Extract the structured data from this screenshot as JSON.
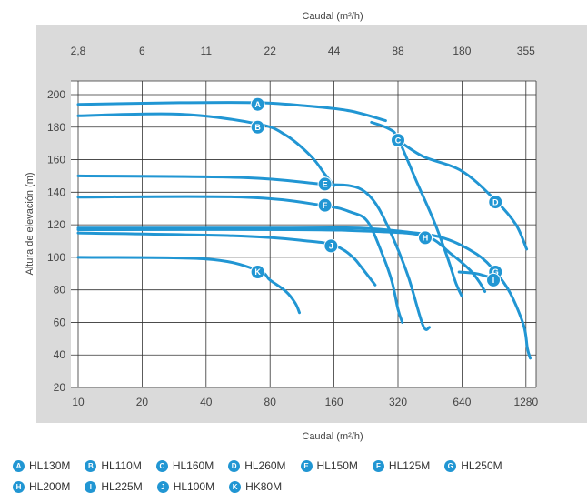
{
  "chart_data": {
    "type": "line",
    "title": "",
    "xlabel": "Caudal (m²/h)",
    "x2label": "Caudal (m²/h)",
    "ylabel": "Altura de elevación (m)",
    "x_scale": "log",
    "xlim": [
      10,
      2600
    ],
    "ylim": [
      20,
      210
    ],
    "x_ticks": [
      10,
      20,
      40,
      80,
      160,
      320,
      640,
      1280
    ],
    "x_tick_labels": [
      "10",
      "20",
      "40",
      "80",
      "160",
      "320",
      "640",
      "1280"
    ],
    "x2_ticks": [
      2.8,
      6,
      11,
      22,
      44,
      88,
      180,
      355
    ],
    "x2_tick_labels": [
      "2,8",
      "6",
      "11",
      "22",
      "44",
      "88",
      "180",
      "355"
    ],
    "y_ticks": [
      20,
      40,
      60,
      80,
      100,
      120,
      140,
      160,
      180,
      200
    ],
    "grid": true,
    "series": [
      {
        "key": "A",
        "name": "HL130M",
        "points": [
          [
            10,
            194
          ],
          [
            30,
            195
          ],
          [
            70,
            195
          ],
          [
            120,
            193
          ],
          [
            190,
            190
          ],
          [
            280,
            184
          ]
        ],
        "label_at": [
          70,
          194
        ]
      },
      {
        "key": "B",
        "name": "HL110M",
        "points": [
          [
            10,
            187
          ],
          [
            30,
            188
          ],
          [
            70,
            182
          ],
          [
            95,
            175
          ],
          [
            125,
            162
          ],
          [
            145,
            151
          ],
          [
            160,
            144
          ]
        ],
        "label_at": [
          70,
          180
        ]
      },
      {
        "key": "C",
        "name": "HL160M",
        "points": [
          [
            240,
            183
          ],
          [
            290,
            179
          ],
          [
            320,
            173
          ],
          [
            390,
            147
          ],
          [
            470,
            123
          ],
          [
            540,
            102
          ],
          [
            600,
            84
          ],
          [
            640,
            76
          ]
        ],
        "label_at": [
          320,
          172
        ]
      },
      {
        "key": "D",
        "name": "HL260M",
        "points": [
          [
            320,
            172
          ],
          [
            420,
            162
          ],
          [
            640,
            153
          ],
          [
            920,
            135
          ],
          [
            1150,
            120
          ],
          [
            1290,
            105
          ]
        ],
        "label_at": [
          920,
          134
        ]
      },
      {
        "key": "E",
        "name": "HL150M",
        "points": [
          [
            10,
            150
          ],
          [
            60,
            149
          ],
          [
            140,
            145
          ],
          [
            190,
            144
          ],
          [
            225,
            140
          ],
          [
            260,
            130
          ],
          [
            310,
            109
          ],
          [
            360,
            87
          ],
          [
            420,
            58
          ],
          [
            450,
            57
          ]
        ],
        "label_at": [
          145,
          145
        ]
      },
      {
        "key": "F",
        "name": "HL125M",
        "points": [
          [
            10,
            137
          ],
          [
            60,
            137
          ],
          [
            140,
            132
          ],
          [
            190,
            128
          ],
          [
            230,
            122
          ],
          [
            270,
            102
          ],
          [
            300,
            85
          ],
          [
            320,
            68
          ],
          [
            335,
            60
          ]
        ],
        "label_at": [
          145,
          132
        ]
      },
      {
        "key": "G",
        "name": "HL250M",
        "points": [
          [
            10,
            118
          ],
          [
            100,
            118
          ],
          [
            210,
            118
          ],
          [
            330,
            116
          ],
          [
            520,
            112
          ],
          [
            750,
            102
          ],
          [
            920,
            91
          ],
          [
            1080,
            78
          ],
          [
            1250,
            58
          ],
          [
            1300,
            44
          ],
          [
            1340,
            38
          ]
        ],
        "label_at": [
          920,
          91
        ]
      },
      {
        "key": "H",
        "name": "HL200M",
        "points": [
          [
            10,
            117
          ],
          [
            100,
            117
          ],
          [
            240,
            116
          ],
          [
            430,
            113
          ],
          [
            570,
            102
          ],
          [
            700,
            92
          ],
          [
            780,
            84
          ],
          [
            820,
            79
          ]
        ],
        "label_at": [
          430,
          112
        ]
      },
      {
        "key": "I",
        "name": "HL225M",
        "points": [
          [
            620,
            91
          ],
          [
            750,
            90
          ],
          [
            900,
            87
          ]
        ],
        "label_at": [
          900,
          86
        ]
      },
      {
        "key": "J",
        "name": "HL100M",
        "points": [
          [
            10,
            115
          ],
          [
            60,
            113
          ],
          [
            120,
            110
          ],
          [
            155,
            108
          ],
          [
            180,
            104
          ],
          [
            200,
            99
          ],
          [
            215,
            94
          ],
          [
            250,
            83
          ]
        ],
        "label_at": [
          155,
          107
        ]
      },
      {
        "key": "K",
        "name": "HK80M",
        "points": [
          [
            10,
            100
          ],
          [
            40,
            99
          ],
          [
            70,
            92
          ],
          [
            80,
            86
          ],
          [
            95,
            79
          ],
          [
            105,
            72
          ],
          [
            110,
            66
          ]
        ],
        "label_at": [
          70,
          91
        ]
      }
    ]
  },
  "legend": [
    {
      "key": "A",
      "name": "HL130M"
    },
    {
      "key": "B",
      "name": "HL110M"
    },
    {
      "key": "C",
      "name": "HL160M"
    },
    {
      "key": "D",
      "name": "HL260M"
    },
    {
      "key": "E",
      "name": "HL150M"
    },
    {
      "key": "F",
      "name": "HL125M"
    },
    {
      "key": "G",
      "name": "HL250M"
    },
    {
      "key": "H",
      "name": "HL200M"
    },
    {
      "key": "I",
      "name": "HL225M"
    },
    {
      "key": "J",
      "name": "HL100M"
    },
    {
      "key": "K",
      "name": "HK80M"
    }
  ],
  "colors": {
    "curve": "#2196d3",
    "frame_band": "#dadada",
    "grid": "#333333",
    "marker_text": "#ffffff"
  }
}
